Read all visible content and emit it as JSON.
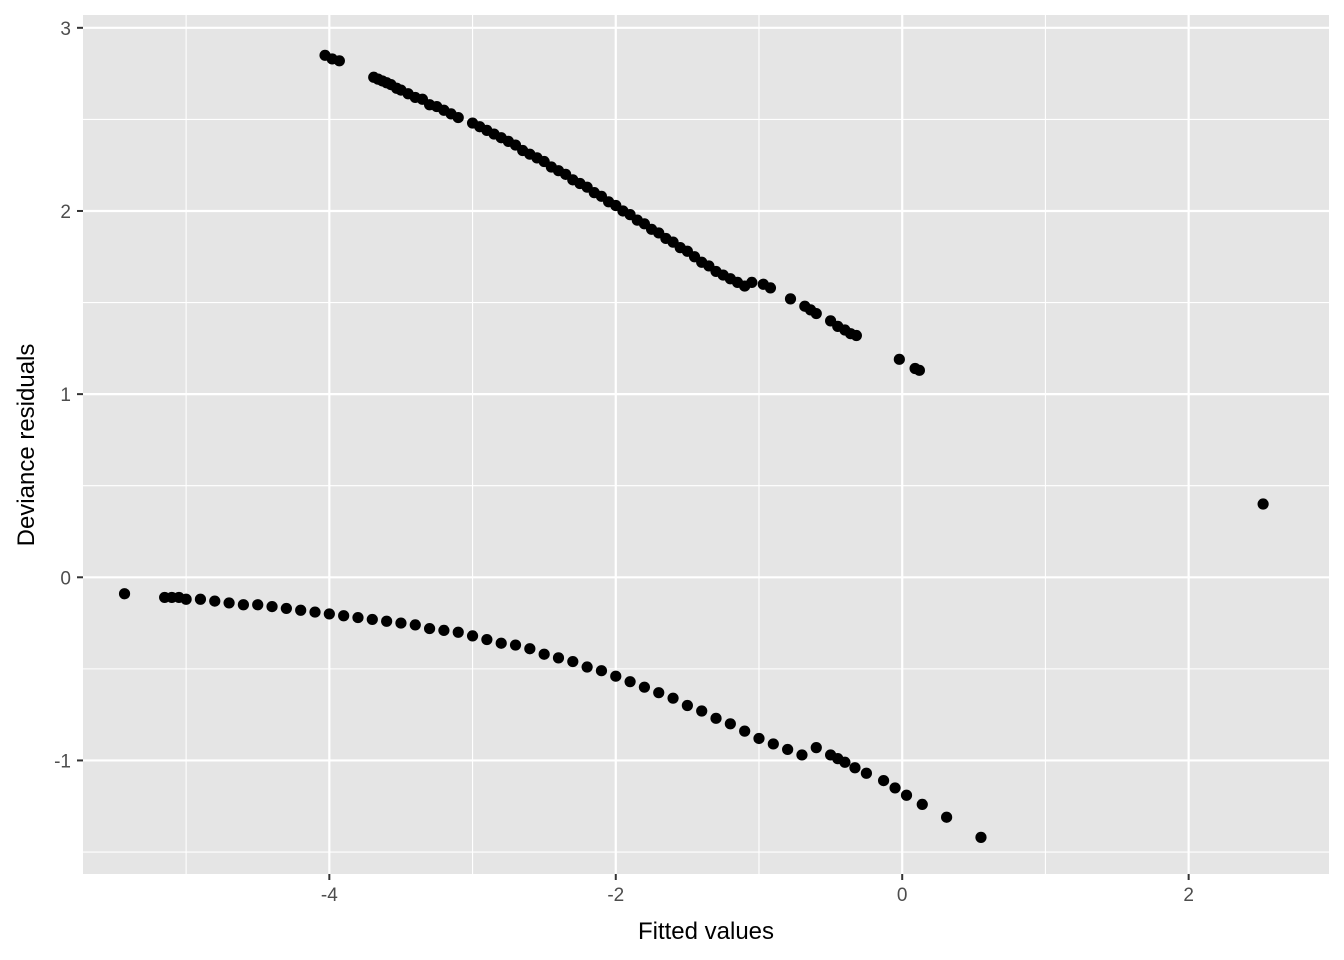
{
  "chart_data": {
    "type": "scatter",
    "title": "",
    "xlabel": "Fitted values",
    "ylabel": "Deviance residuals",
    "xlim": [
      -5.72,
      2.98
    ],
    "ylim": [
      -1.62,
      3.07
    ],
    "x_ticks": [
      -4,
      -2,
      0,
      2
    ],
    "x_tick_labels": [
      "-4",
      "-2",
      "0",
      "2"
    ],
    "y_ticks": [
      -1,
      0,
      1,
      2,
      3
    ],
    "y_tick_labels": [
      "-1",
      "0",
      "1",
      "2",
      "3"
    ],
    "grid": true,
    "legend": "none",
    "colors": {
      "panel": "#e5e5e5",
      "grid": "#ffffff",
      "point": "#000000",
      "tick": "#333333",
      "tick_label": "#4d4d4d"
    },
    "series": [
      {
        "points": [
          [
            -4.03,
            2.85
          ],
          [
            -3.98,
            2.83
          ],
          [
            -3.93,
            2.82
          ],
          [
            -3.69,
            2.73
          ],
          [
            -3.66,
            2.72
          ],
          [
            -3.63,
            2.71
          ],
          [
            -3.6,
            2.7
          ],
          [
            -3.57,
            2.69
          ],
          [
            -3.53,
            2.67
          ],
          [
            -3.5,
            2.66
          ],
          [
            -3.45,
            2.64
          ],
          [
            -3.4,
            2.62
          ],
          [
            -3.35,
            2.61
          ],
          [
            -3.3,
            2.58
          ],
          [
            -3.25,
            2.57
          ],
          [
            -3.2,
            2.55
          ],
          [
            -3.15,
            2.53
          ],
          [
            -3.1,
            2.51
          ],
          [
            -3.0,
            2.48
          ],
          [
            -2.95,
            2.46
          ],
          [
            -2.9,
            2.44
          ],
          [
            -2.85,
            2.42
          ],
          [
            -2.8,
            2.4
          ],
          [
            -2.75,
            2.38
          ],
          [
            -2.7,
            2.36
          ],
          [
            -2.65,
            2.33
          ],
          [
            -2.6,
            2.31
          ],
          [
            -2.55,
            2.29
          ],
          [
            -2.5,
            2.27
          ],
          [
            -2.45,
            2.24
          ],
          [
            -2.4,
            2.22
          ],
          [
            -2.35,
            2.2
          ],
          [
            -2.3,
            2.17
          ],
          [
            -2.25,
            2.15
          ],
          [
            -2.2,
            2.13
          ],
          [
            -2.15,
            2.1
          ],
          [
            -2.1,
            2.08
          ],
          [
            -2.05,
            2.05
          ],
          [
            -2.0,
            2.03
          ],
          [
            -1.95,
            2.0
          ],
          [
            -1.9,
            1.98
          ],
          [
            -1.85,
            1.95
          ],
          [
            -1.8,
            1.93
          ],
          [
            -1.75,
            1.9
          ],
          [
            -1.7,
            1.88
          ],
          [
            -1.65,
            1.85
          ],
          [
            -1.6,
            1.83
          ],
          [
            -1.55,
            1.8
          ],
          [
            -1.5,
            1.78
          ],
          [
            -1.45,
            1.75
          ],
          [
            -1.4,
            1.72
          ],
          [
            -1.35,
            1.7
          ],
          [
            -1.3,
            1.67
          ],
          [
            -1.25,
            1.65
          ],
          [
            -1.2,
            1.63
          ],
          [
            -1.15,
            1.61
          ],
          [
            -1.1,
            1.59
          ],
          [
            -1.05,
            1.61
          ],
          [
            -0.97,
            1.6
          ],
          [
            -0.92,
            1.58
          ],
          [
            -0.78,
            1.52
          ],
          [
            -0.68,
            1.48
          ],
          [
            -0.64,
            1.46
          ],
          [
            -0.6,
            1.44
          ],
          [
            -0.5,
            1.4
          ],
          [
            -0.45,
            1.37
          ],
          [
            -0.4,
            1.35
          ],
          [
            -0.36,
            1.33
          ],
          [
            -0.32,
            1.32
          ],
          [
            -0.02,
            1.19
          ],
          [
            0.09,
            1.14
          ],
          [
            0.12,
            1.13
          ],
          [
            2.52,
            0.4
          ],
          [
            -5.43,
            -0.09
          ],
          [
            -5.15,
            -0.11
          ],
          [
            -5.1,
            -0.11
          ],
          [
            -5.05,
            -0.11
          ],
          [
            -5.0,
            -0.12
          ],
          [
            -4.9,
            -0.12
          ],
          [
            -4.8,
            -0.13
          ],
          [
            -4.7,
            -0.14
          ],
          [
            -4.6,
            -0.15
          ],
          [
            -4.5,
            -0.15
          ],
          [
            -4.4,
            -0.16
          ],
          [
            -4.3,
            -0.17
          ],
          [
            -4.2,
            -0.18
          ],
          [
            -4.1,
            -0.19
          ],
          [
            -4.0,
            -0.2
          ],
          [
            -3.9,
            -0.21
          ],
          [
            -3.8,
            -0.22
          ],
          [
            -3.7,
            -0.23
          ],
          [
            -3.6,
            -0.24
          ],
          [
            -3.5,
            -0.25
          ],
          [
            -3.4,
            -0.26
          ],
          [
            -3.3,
            -0.28
          ],
          [
            -3.2,
            -0.29
          ],
          [
            -3.1,
            -0.3
          ],
          [
            -3.0,
            -0.32
          ],
          [
            -2.9,
            -0.34
          ],
          [
            -2.8,
            -0.36
          ],
          [
            -2.7,
            -0.37
          ],
          [
            -2.6,
            -0.39
          ],
          [
            -2.5,
            -0.42
          ],
          [
            -2.4,
            -0.44
          ],
          [
            -2.3,
            -0.46
          ],
          [
            -2.2,
            -0.49
          ],
          [
            -2.1,
            -0.51
          ],
          [
            -2.0,
            -0.54
          ],
          [
            -1.9,
            -0.57
          ],
          [
            -1.8,
            -0.6
          ],
          [
            -1.7,
            -0.63
          ],
          [
            -1.6,
            -0.66
          ],
          [
            -1.5,
            -0.7
          ],
          [
            -1.4,
            -0.73
          ],
          [
            -1.3,
            -0.77
          ],
          [
            -1.2,
            -0.8
          ],
          [
            -1.1,
            -0.84
          ],
          [
            -1.0,
            -0.88
          ],
          [
            -0.9,
            -0.91
          ],
          [
            -0.8,
            -0.94
          ],
          [
            -0.7,
            -0.97
          ],
          [
            -0.6,
            -0.93
          ],
          [
            -0.5,
            -0.97
          ],
          [
            -0.45,
            -0.99
          ],
          [
            -0.4,
            -1.01
          ],
          [
            -0.33,
            -1.04
          ],
          [
            -0.25,
            -1.07
          ],
          [
            -0.13,
            -1.11
          ],
          [
            -0.05,
            -1.15
          ],
          [
            0.03,
            -1.19
          ],
          [
            0.14,
            -1.24
          ],
          [
            0.31,
            -1.31
          ],
          [
            0.55,
            -1.42
          ]
        ]
      }
    ]
  }
}
